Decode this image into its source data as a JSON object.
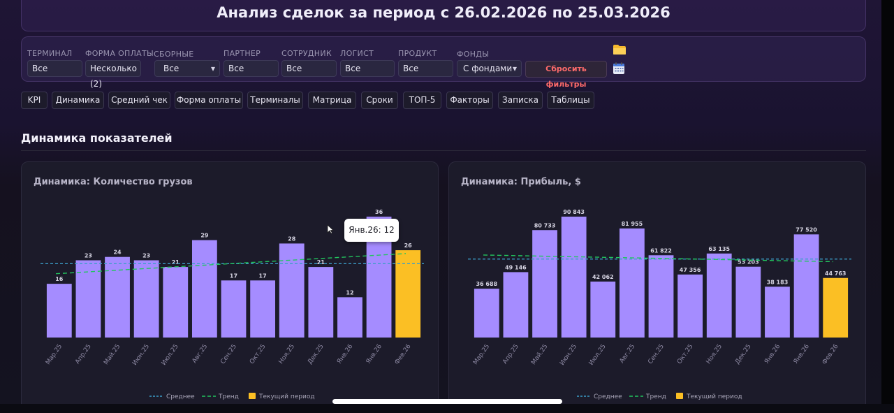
{
  "page": {
    "title": "Анализ сделок за период с 26.02.2026 по 25.03.2026"
  },
  "filters": {
    "terminal": {
      "label": "ТЕРМИНАЛ",
      "value": "Все"
    },
    "payment_form": {
      "label": "ФОРМА ОПЛАТЫ",
      "value": "Несколько (2)"
    },
    "combined": {
      "label": "СБОРНЫЕ",
      "value": "Все"
    },
    "partner": {
      "label": "ПАРТНЕР",
      "value": "Все"
    },
    "employee": {
      "label": "СОТРУДНИК",
      "value": "Все"
    },
    "logist": {
      "label": "ЛОГИСТ",
      "value": "Все"
    },
    "product": {
      "label": "ПРОДУКТ",
      "value": "Все"
    },
    "funds": {
      "label": "ФОНДЫ",
      "value": "С фондами"
    },
    "reset_label": "Сбросить фильтры",
    "icons": {
      "folder": "folder-icon",
      "calendar": "calendar-icon"
    }
  },
  "tabs": [
    {
      "label": "KPI"
    },
    {
      "label": "Динамика"
    },
    {
      "label": "Средний чек"
    },
    {
      "label": "Форма оплаты"
    },
    {
      "label": "Терминалы"
    },
    {
      "label": "Матрица"
    },
    {
      "label": "Сроки"
    },
    {
      "label": "ТОП-5"
    },
    {
      "label": "Факторы"
    },
    {
      "label": "Записка"
    },
    {
      "label": "Таблицы"
    }
  ],
  "section": {
    "title": "Динамика показателей"
  },
  "colors": {
    "bar": "#a58cff",
    "current": "#fbbf24",
    "average": "#3b9ec9",
    "trend": "#22c55e"
  },
  "tooltip": {
    "text": "Янв.26: 12"
  },
  "chart_data": [
    {
      "type": "bar",
      "title": "Динамика: Количество грузов",
      "categories": [
        "Мар.25",
        "Апр.25",
        "Май.25",
        "Июн.25",
        "Июл.25",
        "Авг.25",
        "Сен.25",
        "Окт.25",
        "Ноя.25",
        "Дек.25",
        "Янв.26",
        "Янв.26",
        "Фев.26"
      ],
      "values": [
        16,
        23,
        24,
        23,
        21,
        29,
        17,
        17,
        28,
        21,
        12,
        36,
        26
      ],
      "value_labels": [
        "16",
        "23",
        "24",
        "23",
        "21",
        "29",
        "17",
        "17",
        "28",
        "21",
        "12",
        "36",
        "26"
      ],
      "current_index": 12,
      "average": 22,
      "trend": [
        19,
        25
      ],
      "ylim": [
        0,
        36
      ],
      "legend": [
        "Среднее",
        "Тренд",
        "Текущий период"
      ],
      "legend_position": "bottom"
    },
    {
      "type": "bar",
      "title": "Динамика: Прибыль, $",
      "categories": [
        "Мар.25",
        "Апр.25",
        "Май.25",
        "Июн.25",
        "Июл.25",
        "Авг.25",
        "Сен.25",
        "Окт.25",
        "Ноя.25",
        "Дек.25",
        "Янв.26",
        "Янв.26",
        "Фев.26"
      ],
      "values": [
        36688,
        49146,
        80733,
        90843,
        42062,
        81955,
        61822,
        47356,
        63135,
        53203,
        38183,
        77520,
        44763
      ],
      "value_labels": [
        "36 688",
        "49 146",
        "80 733",
        "90 843",
        "42 062",
        "81 955",
        "61 822",
        "47 356",
        "63 135",
        "53 203",
        "38 183",
        "77 520",
        "44 763"
      ],
      "current_index": 12,
      "average": 59000,
      "trend": [
        62000,
        57000
      ],
      "ylim": [
        0,
        90843
      ],
      "legend": [
        "Среднее",
        "Тренд",
        "Текущий период"
      ],
      "legend_position": "bottom"
    }
  ]
}
